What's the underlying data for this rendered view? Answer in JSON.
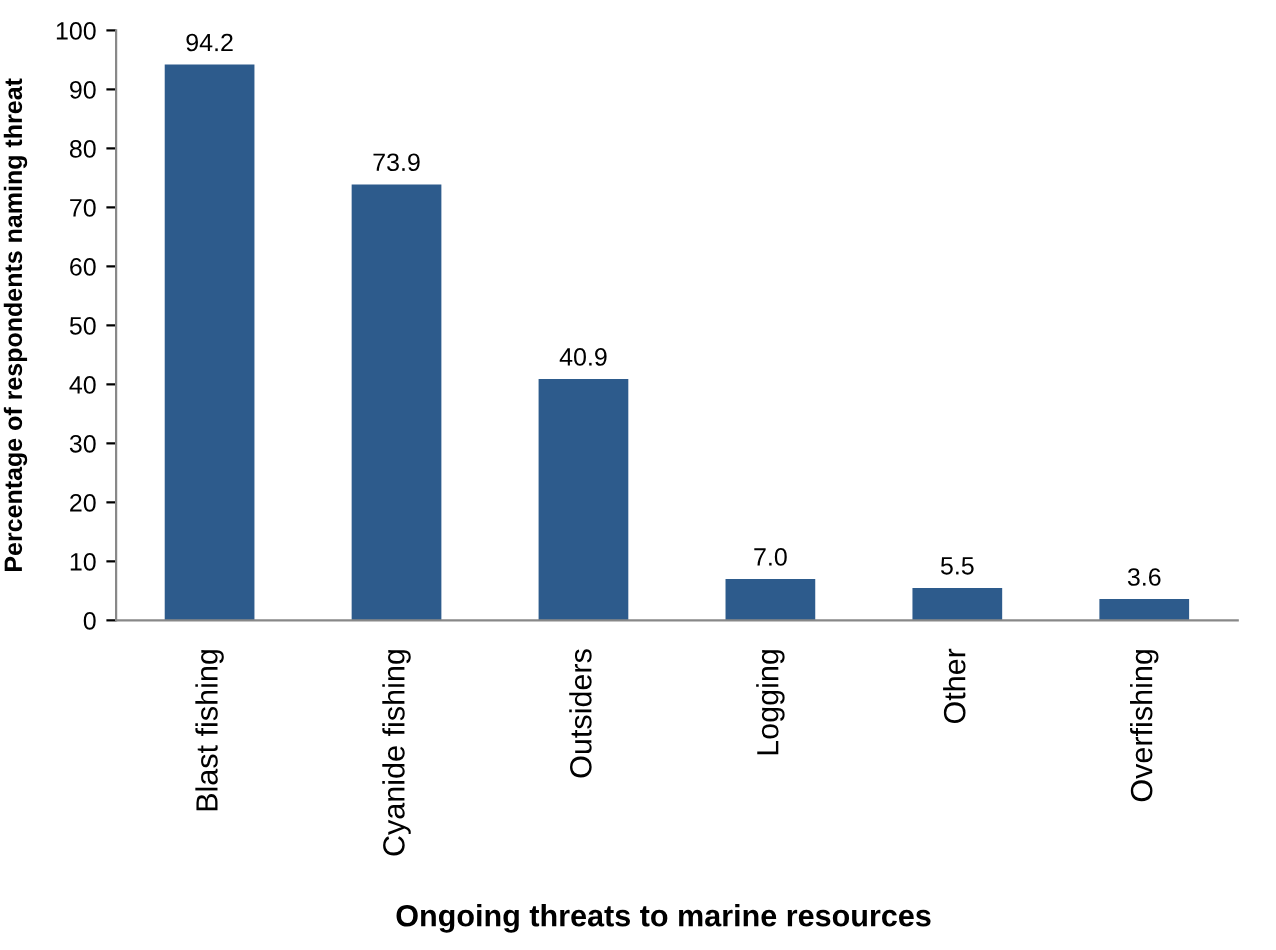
{
  "chart_data": {
    "type": "bar",
    "categories": [
      "Blast fishing",
      "Cyanide fishing",
      "Outsiders",
      "Logging",
      "Other",
      "Overfishing"
    ],
    "values": [
      94.2,
      73.9,
      40.9,
      7.0,
      5.5,
      3.6
    ],
    "color": "#2d5b8c",
    "xlabel": "Ongoing threats to marine resources",
    "ylabel": "Percentage of respondents naming threat",
    "ylim": [
      0,
      100
    ],
    "yticks": [
      0,
      10,
      20,
      30,
      40,
      50,
      60,
      70,
      80,
      90,
      100
    ],
    "value_labels": [
      "94.2",
      "73.9",
      "40.9",
      "7.0",
      "5.5",
      "3.6"
    ],
    "grid": false
  }
}
